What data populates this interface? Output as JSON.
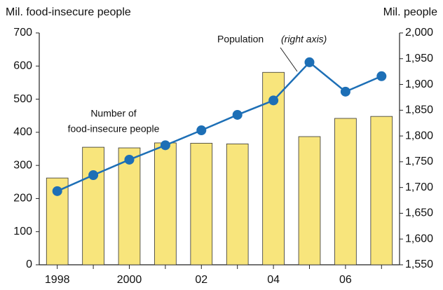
{
  "chart_data": {
    "type": "bar-line",
    "y_title": "Mil. food-insecure people",
    "y2_title": "Mil. people",
    "annotations": {
      "population": "Population",
      "population_note": "(right axis)",
      "bars_line1": "Number of",
      "bars_line2": "food-insecure people"
    },
    "categories": [
      "1998",
      null,
      "2000",
      null,
      "02",
      null,
      "04",
      null,
      "06",
      null
    ],
    "series": [
      {
        "name": "Number of food-insecure people",
        "type": "bar",
        "color": "#f8e57c",
        "values": [
          262,
          355,
          353,
          368,
          367,
          365,
          581,
          387,
          442,
          448
        ]
      },
      {
        "name": "Population",
        "type": "line",
        "axis": "y2",
        "color": "#1d6fb6",
        "values": [
          1693,
          1724,
          1754,
          1782,
          1811,
          1841,
          1869,
          1943,
          1886,
          1916
        ]
      }
    ],
    "ylim": [
      0,
      700
    ],
    "yticks": [
      0,
      100,
      200,
      300,
      400,
      500,
      600,
      700
    ],
    "y2lim": [
      1550,
      2000
    ],
    "y2ticks": [
      {
        "value": 1550,
        "label": "1,550"
      },
      {
        "value": 1600,
        "label": "1,600"
      },
      {
        "value": 1650,
        "label": "1,650"
      },
      {
        "value": 1700,
        "label": "1,700"
      },
      {
        "value": 1750,
        "label": "1,750"
      },
      {
        "value": 1800,
        "label": "1,800"
      },
      {
        "value": 1850,
        "label": "1,850"
      },
      {
        "value": 1900,
        "label": "1,900"
      },
      {
        "value": 1950,
        "label": "1,950"
      },
      {
        "value": 2000,
        "label": "2,000"
      }
    ],
    "grid": false
  }
}
